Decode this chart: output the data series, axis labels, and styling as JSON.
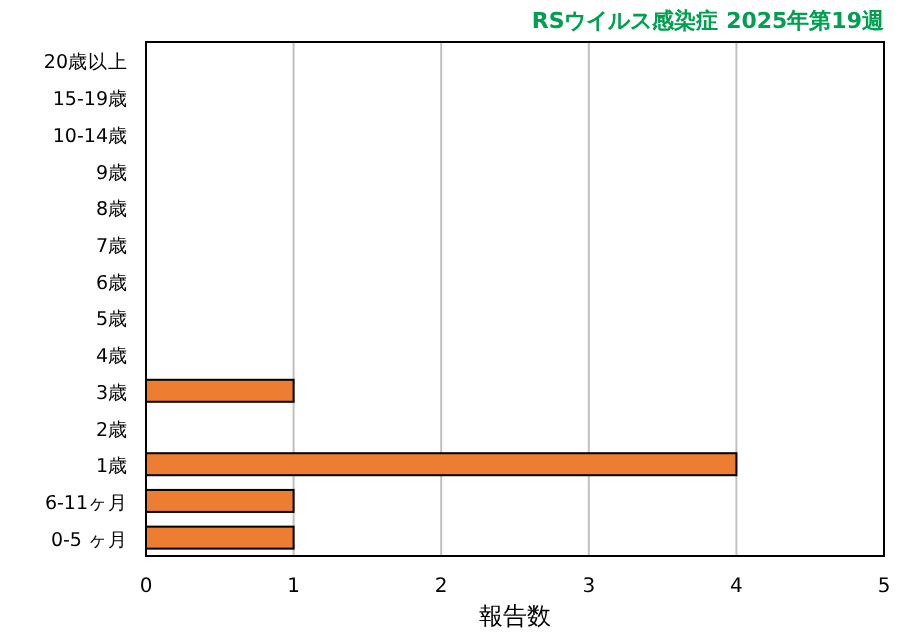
{
  "chart_data": {
    "type": "bar",
    "orientation": "horizontal",
    "title": "RSウイルス感染症 2025年第19週",
    "xlabel": "報告数",
    "categories": [
      "20歳以上",
      "15-19歳",
      "10-14歳",
      "9歳",
      "8歳",
      "7歳",
      "6歳",
      "5歳",
      "4歳",
      "3歳",
      "2歳",
      "1歳",
      "6-11ヶ月",
      "0-5 ヶ月"
    ],
    "values": [
      0,
      0,
      0,
      0,
      0,
      0,
      0,
      0,
      0,
      1,
      0,
      4,
      1,
      1
    ],
    "color": "#ed7d31",
    "xlim": [
      0,
      5
    ],
    "xticks": [
      0,
      1,
      2,
      3,
      4,
      5
    ],
    "grid": "x"
  }
}
